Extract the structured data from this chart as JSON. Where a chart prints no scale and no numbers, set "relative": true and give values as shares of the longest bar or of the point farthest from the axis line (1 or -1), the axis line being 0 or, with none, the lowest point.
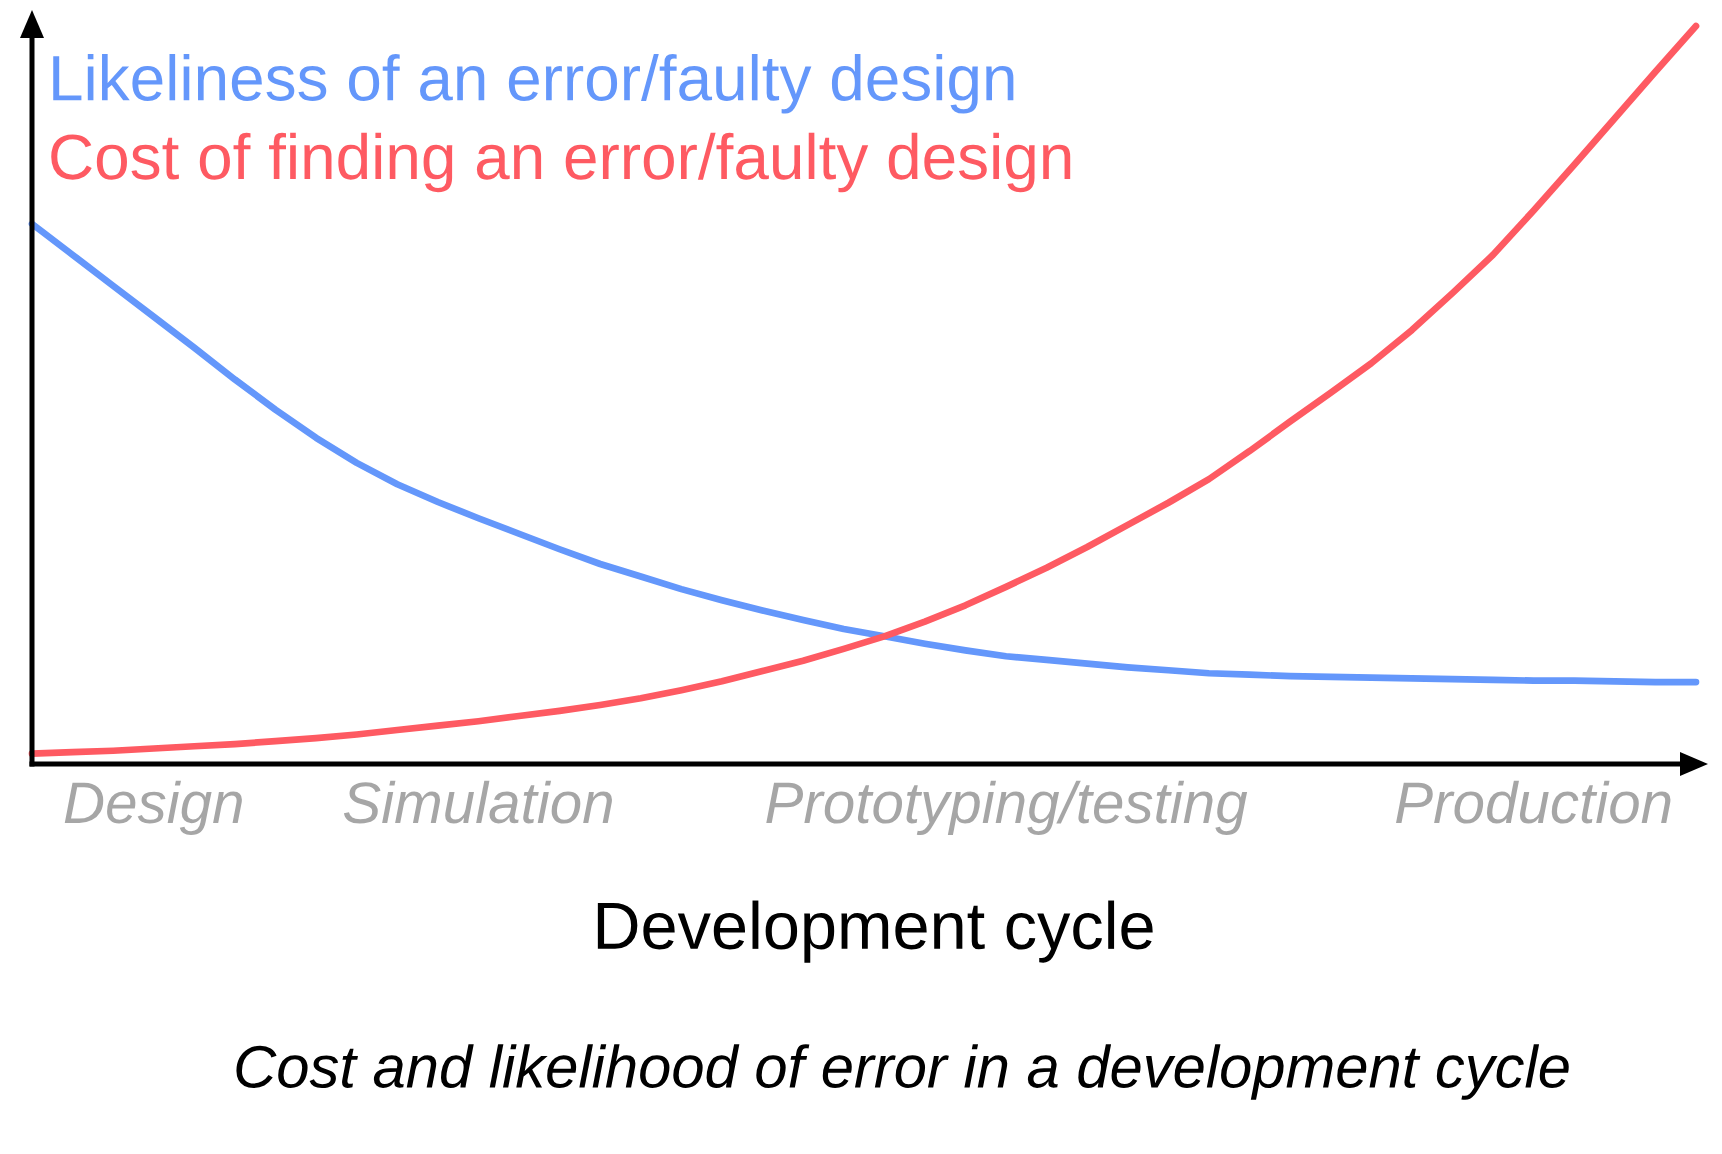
{
  "chart_data": {
    "type": "line",
    "relative": true,
    "xlabel": "Development cycle",
    "annotations": [
      "Cost and likelihood of error in a development cycle"
    ],
    "legend": "top left",
    "categories": [
      null,
      null,
      null,
      "Design",
      null,
      null,
      null,
      null,
      null,
      null,
      null,
      "Simulation",
      null,
      null,
      null,
      null,
      null,
      null,
      null,
      null,
      null,
      null,
      null,
      null,
      "Prototyping/testing",
      null,
      null,
      null,
      null,
      null,
      null,
      null,
      null,
      null,
      null,
      null,
      null,
      "Production",
      null,
      null,
      null,
      null
    ],
    "series": [
      {
        "name": "Likeliness of an error/faulty design",
        "color": "#6497fb",
        "values": [
          0.732,
          0.69,
          0.648,
          0.606,
          0.564,
          0.521,
          0.48,
          0.442,
          0.408,
          0.379,
          0.355,
          0.333,
          0.312,
          0.291,
          0.271,
          0.254,
          0.237,
          0.222,
          0.208,
          0.195,
          0.183,
          0.173,
          0.163,
          0.154,
          0.146,
          0.141,
          0.136,
          0.131,
          0.127,
          0.123,
          0.121,
          0.119,
          0.118,
          0.117,
          0.116,
          0.115,
          0.114,
          0.113,
          0.113,
          0.112,
          0.111,
          0.111
        ]
      },
      {
        "name": "Cost of finding an error/faulty design",
        "color": "#fe5a62",
        "values": [
          0.014,
          0.016,
          0.018,
          0.021,
          0.024,
          0.027,
          0.031,
          0.035,
          0.04,
          0.046,
          0.052,
          0.058,
          0.065,
          0.072,
          0.08,
          0.089,
          0.1,
          0.112,
          0.126,
          0.14,
          0.156,
          0.173,
          0.193,
          0.215,
          0.24,
          0.266,
          0.294,
          0.324,
          0.354,
          0.386,
          0.424,
          0.464,
          0.503,
          0.543,
          0.588,
          0.638,
          0.69,
          0.75,
          0.812,
          0.875,
          0.938,
          1.0
        ]
      }
    ]
  }
}
